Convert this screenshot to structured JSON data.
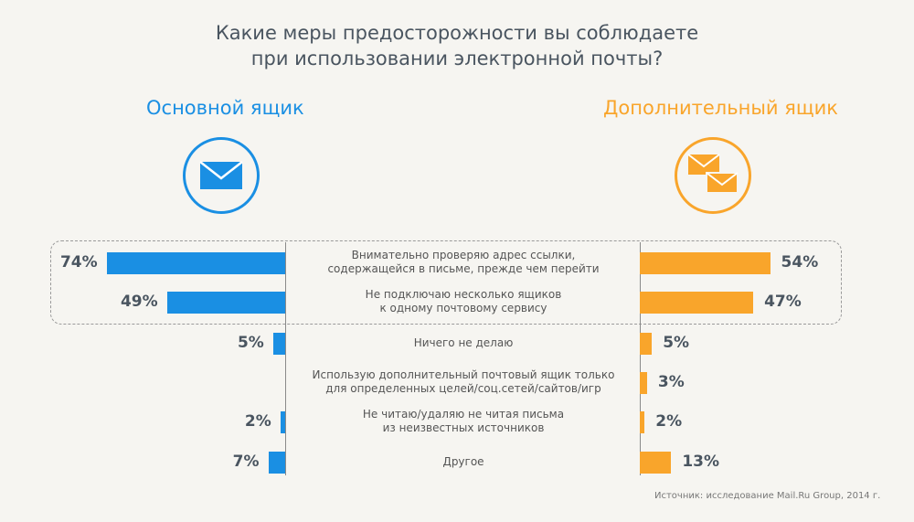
{
  "chart_data": {
    "type": "bar",
    "title": "Какие меры предосторожности вы соблюдаете при использовании электронной почты?",
    "title_lines": [
      "Какие меры предосторожности вы соблюдаете",
      "при использовании электронной почты?"
    ],
    "categories": [
      [
        "Внимательно проверяю адрес ссылки,",
        "содержащейся в письме, прежде чем перейти"
      ],
      [
        "Не подключаю несколько ящиков",
        "к одному почтовому сервису"
      ],
      [
        "Ничего не делаю"
      ],
      [
        "Использую дополнительный почтовый ящик только",
        "для определенных целей/соц.сетей/сайтов/игр"
      ],
      [
        "Не читаю/удаляю не читая письма",
        "из неизвестных источников"
      ],
      [
        "Другое"
      ]
    ],
    "series": [
      {
        "name": "Основной ящик",
        "color": "#1a8fe3",
        "values": [
          74,
          49,
          5,
          null,
          2,
          7
        ]
      },
      {
        "name": "Дополнительный ящик",
        "color": "#f9a52b",
        "values": [
          54,
          47,
          5,
          3,
          2,
          13
        ]
      }
    ],
    "unit": "%",
    "highlighted_categories": [
      0,
      1
    ],
    "source": "Источник: исследование Mail.Ru Group, 2014 г."
  }
}
